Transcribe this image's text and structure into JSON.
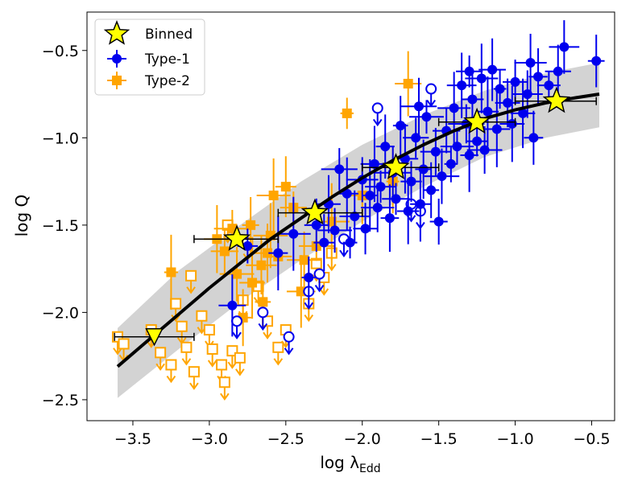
{
  "chart_data": {
    "type": "scatter",
    "xlabel": "log λ",
    "xlabel_sub": "Edd",
    "ylabel": "log Q",
    "xlim": [
      -3.8,
      -0.35
    ],
    "ylim": [
      -2.62,
      -0.28
    ],
    "xticks": [
      -3.5,
      -3.0,
      -2.5,
      -2.0,
      -1.5,
      -1.0,
      -0.5
    ],
    "xtick_labels": [
      "−3.5",
      "−3.0",
      "−2.5",
      "−2.0",
      "−1.5",
      "−1.0",
      "−0.5"
    ],
    "yticks": [
      -2.5,
      -2.0,
      -1.5,
      -1.0,
      -0.5
    ],
    "ytick_labels": [
      "−2.5",
      "−2.0",
      "−1.5",
      "−1.0",
      "−0.5"
    ],
    "grid": false,
    "legend_position": "top-left",
    "legend": [
      {
        "label": "Binned",
        "marker": "star",
        "color": "#ffff00"
      },
      {
        "label": "Type-1",
        "marker": "circle",
        "color": "#0000ee"
      },
      {
        "label": "Type-2",
        "marker": "square",
        "color": "#ffa500"
      }
    ],
    "colors": {
      "type1": "#0000ee",
      "type2": "#ffa500",
      "binned": "#ffff00",
      "fit": "#000000",
      "band": "#d3d3d3"
    },
    "fit_curve": {
      "x": [
        -3.6,
        -3.4,
        -3.2,
        -3.0,
        -2.8,
        -2.6,
        -2.4,
        -2.2,
        -2.0,
        -1.8,
        -1.6,
        -1.4,
        -1.2,
        -1.0,
        -0.8,
        -0.6,
        -0.45
      ],
      "y": [
        -2.31,
        -2.16,
        -2.01,
        -1.86,
        -1.72,
        -1.58,
        -1.46,
        -1.34,
        -1.23,
        -1.13,
        -1.04,
        -0.96,
        -0.89,
        -0.84,
        -0.8,
        -0.77,
        -0.75
      ]
    },
    "band": {
      "x": [
        -3.6,
        -3.2,
        -2.8,
        -2.4,
        -2.0,
        -1.6,
        -1.2,
        -0.8,
        -0.45
      ],
      "y_low": [
        -2.49,
        -2.21,
        -1.94,
        -1.7,
        -1.48,
        -1.28,
        -1.11,
        -1.0,
        -0.94
      ],
      "y_high": [
        -2.09,
        -1.76,
        -1.5,
        -1.25,
        -1.04,
        -0.87,
        -0.73,
        -0.63,
        -0.57
      ]
    },
    "binned": [
      {
        "x": -3.36,
        "y": -2.14,
        "xerr_lo": -3.62,
        "xerr_hi": -3.1,
        "kind": "upper-limit"
      },
      {
        "x": -2.82,
        "y": -1.58,
        "xerr_lo": -3.1,
        "xerr_hi": -2.55
      },
      {
        "x": -2.31,
        "y": -1.43,
        "xerr_lo": -2.55,
        "xerr_hi": -2.0
      },
      {
        "x": -1.78,
        "y": -1.17,
        "xerr_lo": -2.0,
        "xerr_hi": -1.5
      },
      {
        "x": -1.25,
        "y": -0.91,
        "xerr_lo": -1.5,
        "xerr_hi": -1.0
      },
      {
        "x": -0.73,
        "y": -0.79,
        "xerr_lo": -1.0,
        "xerr_hi": -0.47
      }
    ],
    "type1_detections": [
      {
        "x": -0.47,
        "y": -0.56
      },
      {
        "x": -0.68,
        "y": -0.48
      },
      {
        "x": -0.72,
        "y": -0.62
      },
      {
        "x": -0.78,
        "y": -0.7
      },
      {
        "x": -0.85,
        "y": -0.65
      },
      {
        "x": -0.9,
        "y": -0.57
      },
      {
        "x": -0.92,
        "y": -0.75
      },
      {
        "x": -0.95,
        "y": -0.86
      },
      {
        "x": -1.0,
        "y": -0.68
      },
      {
        "x": -1.05,
        "y": -0.8
      },
      {
        "x": -1.1,
        "y": -0.72
      },
      {
        "x": -1.12,
        "y": -0.95
      },
      {
        "x": -1.15,
        "y": -0.61
      },
      {
        "x": -1.18,
        "y": -0.85
      },
      {
        "x": -1.22,
        "y": -0.66
      },
      {
        "x": -1.25,
        "y": -1.02
      },
      {
        "x": -1.28,
        "y": -0.78
      },
      {
        "x": -1.3,
        "y": -1.1
      },
      {
        "x": -1.32,
        "y": -0.92
      },
      {
        "x": -1.35,
        "y": -0.7
      },
      {
        "x": -1.38,
        "y": -1.05
      },
      {
        "x": -1.4,
        "y": -0.83
      },
      {
        "x": -1.42,
        "y": -1.15
      },
      {
        "x": -1.45,
        "y": -0.96
      },
      {
        "x": -1.48,
        "y": -1.22
      },
      {
        "x": -1.5,
        "y": -1.48
      },
      {
        "x": -1.52,
        "y": -1.08
      },
      {
        "x": -1.55,
        "y": -1.3
      },
      {
        "x": -1.58,
        "y": -0.88
      },
      {
        "x": -1.6,
        "y": -1.18
      },
      {
        "x": -1.62,
        "y": -1.38
      },
      {
        "x": -1.65,
        "y": -1.0
      },
      {
        "x": -1.68,
        "y": -1.25
      },
      {
        "x": -1.7,
        "y": -1.42
      },
      {
        "x": -1.72,
        "y": -1.12
      },
      {
        "x": -1.75,
        "y": -0.93
      },
      {
        "x": -1.78,
        "y": -1.35
      },
      {
        "x": -1.8,
        "y": -1.2
      },
      {
        "x": -1.82,
        "y": -1.46
      },
      {
        "x": -1.85,
        "y": -1.05
      },
      {
        "x": -1.88,
        "y": -1.28
      },
      {
        "x": -1.9,
        "y": -1.4
      },
      {
        "x": -1.92,
        "y": -1.15
      },
      {
        "x": -1.95,
        "y": -1.33
      },
      {
        "x": -1.98,
        "y": -1.52
      },
      {
        "x": -2.0,
        "y": -1.24
      },
      {
        "x": -2.05,
        "y": -1.45
      },
      {
        "x": -2.08,
        "y": -1.6
      },
      {
        "x": -2.1,
        "y": -1.32
      },
      {
        "x": -2.15,
        "y": -1.18
      },
      {
        "x": -2.18,
        "y": -1.53
      },
      {
        "x": -2.22,
        "y": -1.38
      },
      {
        "x": -2.25,
        "y": -1.6
      },
      {
        "x": -2.3,
        "y": -1.5
      },
      {
        "x": -2.35,
        "y": -1.8
      },
      {
        "x": -2.45,
        "y": -1.55
      },
      {
        "x": -2.55,
        "y": -1.66
      },
      {
        "x": -2.75,
        "y": -1.62
      },
      {
        "x": -2.85,
        "y": -1.96
      },
      {
        "x": -1.3,
        "y": -0.62
      },
      {
        "x": -1.02,
        "y": -0.92
      },
      {
        "x": -0.88,
        "y": -1.0
      },
      {
        "x": -1.2,
        "y": -1.07
      },
      {
        "x": -1.63,
        "y": -0.82
      }
    ],
    "type1_upper_limits": [
      {
        "x": -1.55,
        "y": -0.72
      },
      {
        "x": -1.62,
        "y": -1.42
      },
      {
        "x": -1.68,
        "y": -1.38
      },
      {
        "x": -2.12,
        "y": -1.58
      },
      {
        "x": -2.28,
        "y": -1.78
      },
      {
        "x": -2.35,
        "y": -1.88
      },
      {
        "x": -2.65,
        "y": -2.0
      },
      {
        "x": -2.82,
        "y": -2.05
      },
      {
        "x": -2.48,
        "y": -2.14
      },
      {
        "x": -1.9,
        "y": -0.83
      }
    ],
    "type2_detections": [
      {
        "x": -1.7,
        "y": -0.69
      },
      {
        "x": -2.1,
        "y": -0.86
      },
      {
        "x": -2.5,
        "y": -1.28
      },
      {
        "x": -2.58,
        "y": -1.33
      },
      {
        "x": -2.73,
        "y": -1.5
      },
      {
        "x": -2.82,
        "y": -1.78
      },
      {
        "x": -2.62,
        "y": -1.66
      },
      {
        "x": -2.66,
        "y": -1.73
      },
      {
        "x": -3.25,
        "y": -1.77
      },
      {
        "x": -2.4,
        "y": -1.88
      },
      {
        "x": -2.3,
        "y": -1.62
      },
      {
        "x": -2.95,
        "y": -1.58
      },
      {
        "x": -2.72,
        "y": -1.83
      },
      {
        "x": -2.9,
        "y": -1.65
      },
      {
        "x": -2.55,
        "y": -1.68
      },
      {
        "x": -2.2,
        "y": -1.48
      },
      {
        "x": -2.38,
        "y": -1.7
      },
      {
        "x": -1.8,
        "y": -1.25
      },
      {
        "x": -2.0,
        "y": -1.33
      },
      {
        "x": -2.6,
        "y": -1.56
      },
      {
        "x": -2.78,
        "y": -2.03
      },
      {
        "x": -2.65,
        "y": -1.94
      },
      {
        "x": -2.85,
        "y": -1.52
      },
      {
        "x": -2.45,
        "y": -1.4
      }
    ],
    "type2_upper_limits": [
      {
        "x": -3.6,
        "y": -2.14
      },
      {
        "x": -3.56,
        "y": -2.18
      },
      {
        "x": -3.38,
        "y": -2.1
      },
      {
        "x": -3.32,
        "y": -2.23
      },
      {
        "x": -3.25,
        "y": -2.3
      },
      {
        "x": -3.22,
        "y": -1.95
      },
      {
        "x": -3.18,
        "y": -2.08
      },
      {
        "x": -3.12,
        "y": -1.79
      },
      {
        "x": -3.1,
        "y": -2.34
      },
      {
        "x": -3.05,
        "y": -2.02
      },
      {
        "x": -3.0,
        "y": -2.1
      },
      {
        "x": -2.98,
        "y": -2.21
      },
      {
        "x": -2.92,
        "y": -2.3
      },
      {
        "x": -2.9,
        "y": -2.4
      },
      {
        "x": -2.85,
        "y": -2.22
      },
      {
        "x": -2.8,
        "y": -2.26
      },
      {
        "x": -2.78,
        "y": -1.93
      },
      {
        "x": -2.75,
        "y": -1.6
      },
      {
        "x": -2.68,
        "y": -1.85
      },
      {
        "x": -2.62,
        "y": -2.05
      },
      {
        "x": -2.55,
        "y": -2.2
      },
      {
        "x": -2.5,
        "y": -2.1
      },
      {
        "x": -2.35,
        "y": -1.95
      },
      {
        "x": -2.3,
        "y": -1.72
      },
      {
        "x": -2.25,
        "y": -1.8
      },
      {
        "x": -2.2,
        "y": -1.66
      },
      {
        "x": -3.15,
        "y": -2.2
      },
      {
        "x": -2.88,
        "y": -1.5
      }
    ]
  }
}
